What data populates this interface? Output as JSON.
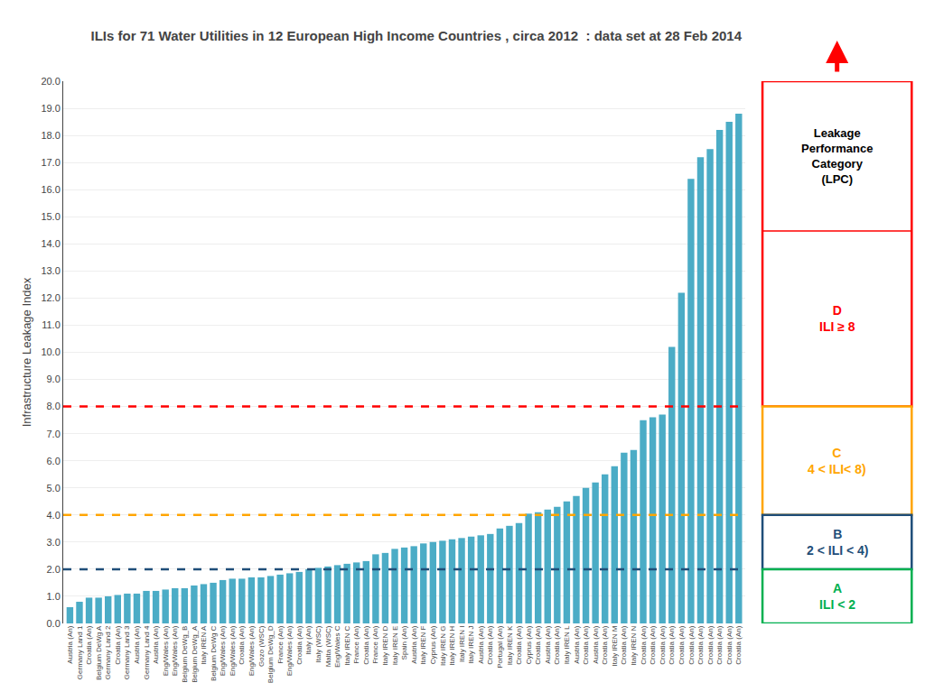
{
  "chart_data": {
    "type": "bar",
    "title": "ILIs for 71 Water Utilities in 12 European High Income Countries , circa 2012  : data set at 28 Feb 2014",
    "ylabel": "Infrastructure Leakage Index",
    "categories": [
      "Austria (An)",
      "Germany Land 1",
      "Croatia (An)",
      "Belgium DeWg A",
      "Germany Land 2",
      "Croatia (An)",
      "Germany Land 3",
      "Austria (An)",
      "Germany Land 4",
      "Austria (An)",
      "Eng/Wales (An)",
      "Eng/Wales (An)",
      "Belgium DeWg_B",
      "Belgium DeWg_A",
      "Italy IREN A",
      "Belgium DeWg C",
      "Eng/Wales (An)",
      "Eng/Wales (An)",
      "Croatia (An)",
      "Eng/Wales (An)",
      "Gozo (WSC)",
      "Belgium DeWg_D",
      "France (An)",
      "Eng/Wales (An)",
      "Croatia (An)",
      "Italy (An)",
      "Italy (WSC)",
      "Malta (WSC)",
      "Eng/Wales C",
      "Italy IREN C",
      "France (An)",
      "Croatia (An)",
      "France (An)",
      "Italy IREN D",
      "Italy IREN E",
      "Spain (An)",
      "Austria (An)",
      "Italy IREN F",
      "Cyprus (An)",
      "Italy IREN G",
      "Italy IREN H",
      "Italy IREN I",
      "Italy IREN J",
      "Austria (An)",
      "Croatia (An)",
      "Portugal (An)",
      "Italy IREN K",
      "Croatia (An)",
      "Cyprus (An)",
      "Croatia (An)",
      "Austria (An)",
      "Croatia (An)",
      "Italy IREN L",
      "Austria (An)",
      "Croatia (An)",
      "Austria (An)",
      "Croatia (An)",
      "Italy IREN M",
      "Croatia (An)",
      "Italy IREN N",
      "Croatia (An)",
      "Croatia (An)",
      "Croatia (An)",
      "Croatia (An)",
      "Croatia (An)",
      "Croatia (An)",
      "Croatia (An)",
      "Croatia (An)",
      "Croatia (An)",
      "Croatia (An)",
      "Croatia (An)"
    ],
    "values": [
      0.6,
      0.8,
      0.95,
      0.95,
      1.0,
      1.05,
      1.1,
      1.1,
      1.2,
      1.2,
      1.25,
      1.3,
      1.3,
      1.4,
      1.45,
      1.5,
      1.6,
      1.65,
      1.65,
      1.7,
      1.7,
      1.75,
      1.8,
      1.85,
      1.9,
      2.0,
      2.05,
      2.1,
      2.15,
      2.2,
      2.25,
      2.3,
      2.55,
      2.6,
      2.75,
      2.8,
      2.85,
      2.95,
      3.0,
      3.05,
      3.1,
      3.15,
      3.2,
      3.25,
      3.3,
      3.5,
      3.6,
      3.7,
      4.05,
      4.1,
      4.2,
      4.3,
      4.5,
      4.7,
      5.0,
      5.2,
      5.5,
      5.8,
      6.3,
      6.4,
      7.5,
      7.6,
      7.7,
      10.2,
      12.2,
      16.4,
      17.2,
      17.5,
      18.2,
      18.5,
      18.8
    ],
    "color": "#4bacc6",
    "ylim": [
      0.0,
      20.0
    ],
    "yticks": [
      {
        "value": 0.0,
        "label": "0.0"
      },
      {
        "value": 1.0,
        "label": "1.0"
      },
      {
        "value": 2.0,
        "label": "2.0"
      },
      {
        "value": 3.0,
        "label": "3.0"
      },
      {
        "value": 4.0,
        "label": "4.0"
      },
      {
        "value": 5.0,
        "label": "5.0"
      },
      {
        "value": 6.0,
        "label": "6.0"
      },
      {
        "value": 7.0,
        "label": "7.0"
      },
      {
        "value": 8.0,
        "label": "8.0"
      },
      {
        "value": 9.0,
        "label": "9.0"
      },
      {
        "value": 10.0,
        "label": "10.0"
      },
      {
        "value": 11.0,
        "label": "11.0"
      },
      {
        "value": 12.0,
        "label": "12.0"
      },
      {
        "value": 13.0,
        "label": "13.0"
      },
      {
        "value": 14.0,
        "label": "14.0"
      },
      {
        "value": 15.0,
        "label": "15.0"
      },
      {
        "value": 16.0,
        "label": "16.0"
      },
      {
        "value": 17.0,
        "label": "17.0"
      },
      {
        "value": 18.0,
        "label": "18.0"
      },
      {
        "value": 19.0,
        "label": "19.0"
      },
      {
        "value": 20.0,
        "label": "20.0"
      }
    ],
    "grid": true,
    "lines": [
      {
        "value": 2.0,
        "color": "#1F4E79"
      },
      {
        "value": 4.0,
        "color": "#FFA500"
      },
      {
        "value": 8.0,
        "color": "#FF0000"
      }
    ],
    "bands": [
      {
        "label": "D\nILI ≥ 8",
        "from": 8.0,
        "to": 20.0,
        "color": "#FF0000"
      },
      {
        "label": "C\n4 < ILI< 8)",
        "from": 4.0,
        "to": 8.0,
        "color": "#FFA500"
      },
      {
        "label": "B\n2 < ILI < 4)",
        "from": 2.0,
        "to": 4.0,
        "color": "#1F4E79"
      },
      {
        "label": "A\nILI < 2",
        "from": 0.0,
        "to": 2.0,
        "color": "#00B050"
      }
    ],
    "band_header": "Leakage\nPerformance\nCategory\n(LPC)"
  }
}
